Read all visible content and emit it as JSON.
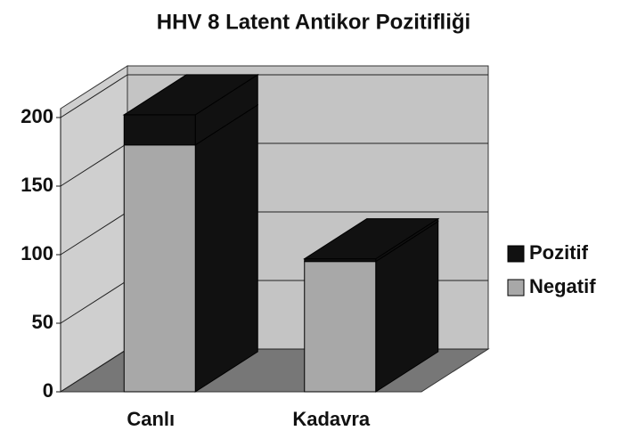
{
  "chart_data": {
    "type": "bar3d_stacked",
    "title": "HHV 8 Latent Antikor Pozitifliği",
    "categories": [
      "Canlı",
      "Kadavra"
    ],
    "series": [
      {
        "name": "Negatif",
        "color": "#a8a8a8",
        "values": [
          180,
          95
        ]
      },
      {
        "name": "Pozitif",
        "color": "#111111",
        "values": [
          22,
          2
        ]
      }
    ],
    "legend_order": [
      "Pozitif",
      "Negatif"
    ],
    "ylim": [
      0,
      200
    ],
    "yticks": [
      0,
      50,
      100,
      150,
      200
    ],
    "grid": true,
    "legend": "right"
  }
}
